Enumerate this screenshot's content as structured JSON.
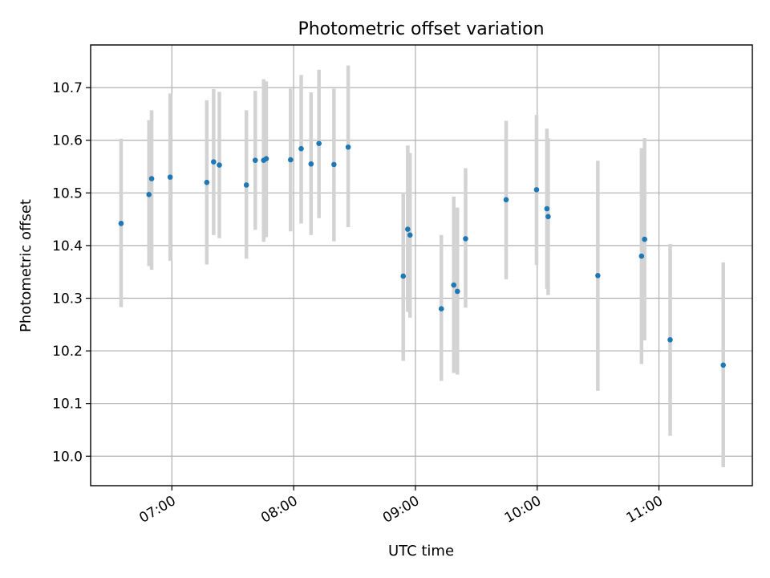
{
  "chart_data": {
    "type": "scatter",
    "title": "Photometric offset variation",
    "xlabel": "UTC time",
    "ylabel": "Photometric offset",
    "x_unit": "hours UTC",
    "xlim": [
      6.333,
      11.767
    ],
    "ylim": [
      9.944,
      10.781
    ],
    "xticks": [
      {
        "value": 7,
        "label": "07:00"
      },
      {
        "value": 8,
        "label": "08:00"
      },
      {
        "value": 9,
        "label": "09:00"
      },
      {
        "value": 10,
        "label": "10:00"
      },
      {
        "value": 11,
        "label": "11:00"
      }
    ],
    "yticks": [
      {
        "value": 10.0,
        "label": "10.0"
      },
      {
        "value": 10.1,
        "label": "10.1"
      },
      {
        "value": 10.2,
        "label": "10.2"
      },
      {
        "value": 10.3,
        "label": "10.3"
      },
      {
        "value": 10.4,
        "label": "10.4"
      },
      {
        "value": 10.5,
        "label": "10.5"
      },
      {
        "value": 10.6,
        "label": "10.6"
      },
      {
        "value": 10.7,
        "label": "10.7"
      }
    ],
    "grid": true,
    "marker_color": "#1f77b4",
    "errorbar_color": "#d3d3d3",
    "series": [
      {
        "points": [
          {
            "x": 6.583,
            "y": 10.442,
            "ylo": 10.283,
            "yhi": 10.603
          },
          {
            "x": 6.812,
            "y": 10.497,
            "ylo": 10.361,
            "yhi": 10.638
          },
          {
            "x": 6.834,
            "y": 10.527,
            "ylo": 10.354,
            "yhi": 10.657
          },
          {
            "x": 6.986,
            "y": 10.53,
            "ylo": 10.371,
            "yhi": 10.689
          },
          {
            "x": 7.287,
            "y": 10.52,
            "ylo": 10.364,
            "yhi": 10.676
          },
          {
            "x": 7.343,
            "y": 10.559,
            "ylo": 10.42,
            "yhi": 10.697
          },
          {
            "x": 7.39,
            "y": 10.553,
            "ylo": 10.414,
            "yhi": 10.692
          },
          {
            "x": 7.612,
            "y": 10.515,
            "ylo": 10.375,
            "yhi": 10.657
          },
          {
            "x": 7.685,
            "y": 10.562,
            "ylo": 10.43,
            "yhi": 10.694
          },
          {
            "x": 7.754,
            "y": 10.562,
            "ylo": 10.407,
            "yhi": 10.716
          },
          {
            "x": 7.775,
            "y": 10.565,
            "ylo": 10.416,
            "yhi": 10.712
          },
          {
            "x": 7.975,
            "y": 10.563,
            "ylo": 10.427,
            "yhi": 10.698
          },
          {
            "x": 8.062,
            "y": 10.584,
            "ylo": 10.442,
            "yhi": 10.724
          },
          {
            "x": 8.143,
            "y": 10.555,
            "ylo": 10.42,
            "yhi": 10.691
          },
          {
            "x": 8.208,
            "y": 10.594,
            "ylo": 10.452,
            "yhi": 10.734
          },
          {
            "x": 8.331,
            "y": 10.554,
            "ylo": 10.408,
            "yhi": 10.698
          },
          {
            "x": 8.448,
            "y": 10.587,
            "ylo": 10.435,
            "yhi": 10.742
          },
          {
            "x": 8.9,
            "y": 10.342,
            "ylo": 10.181,
            "yhi": 10.501
          },
          {
            "x": 8.937,
            "y": 10.431,
            "ylo": 10.274,
            "yhi": 10.59
          },
          {
            "x": 8.956,
            "y": 10.42,
            "ylo": 10.263,
            "yhi": 10.576
          },
          {
            "x": 9.213,
            "y": 10.28,
            "ylo": 10.143,
            "yhi": 10.42
          },
          {
            "x": 9.315,
            "y": 10.325,
            "ylo": 10.158,
            "yhi": 10.493
          },
          {
            "x": 9.345,
            "y": 10.313,
            "ylo": 10.155,
            "yhi": 10.472
          },
          {
            "x": 9.412,
            "y": 10.413,
            "ylo": 10.282,
            "yhi": 10.547
          },
          {
            "x": 9.745,
            "y": 10.487,
            "ylo": 10.336,
            "yhi": 10.637
          },
          {
            "x": 9.995,
            "y": 10.506,
            "ylo": 10.363,
            "yhi": 10.648
          },
          {
            "x": 10.08,
            "y": 10.47,
            "ylo": 10.318,
            "yhi": 10.622
          },
          {
            "x": 10.09,
            "y": 10.455,
            "ylo": 10.306,
            "yhi": 10.604
          },
          {
            "x": 10.498,
            "y": 10.343,
            "ylo": 10.124,
            "yhi": 10.561
          },
          {
            "x": 10.857,
            "y": 10.38,
            "ylo": 10.175,
            "yhi": 10.585
          },
          {
            "x": 10.882,
            "y": 10.412,
            "ylo": 10.22,
            "yhi": 10.604
          },
          {
            "x": 11.092,
            "y": 10.221,
            "ylo": 10.039,
            "yhi": 10.403
          },
          {
            "x": 11.528,
            "y": 10.173,
            "ylo": 9.979,
            "yhi": 10.368
          }
        ]
      }
    ]
  }
}
